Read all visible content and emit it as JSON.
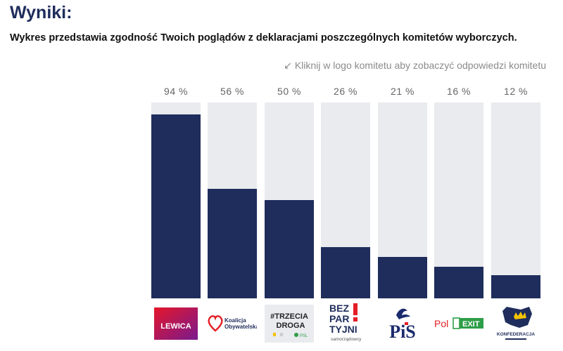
{
  "page": {
    "title": "Wyniki:",
    "subtitle": "Wykres przedstawia zgodność Twoich poglądów z deklaracjami poszczególnych komitetów wyborczych.",
    "hint": "Kliknij w logo komitetu aby zobaczyć odpowiedzi komitetu",
    "hint_icon": "arrow-down-left-icon"
  },
  "colors": {
    "fill": "#1f2d5c",
    "track": "#e9ebee",
    "lewica": "#c8102e",
    "ko": "#e31e24",
    "bezpartyjni": "#1f2d5c",
    "pis": "#1a2a6c",
    "polexit": "#2e9e48",
    "konfederacja": "#1f2d5c"
  },
  "chart_data": {
    "type": "bar",
    "categories": [
      "Lewica",
      "Koalicja Obywatelska",
      "Trzecia Droga",
      "Bezpartyjni Samorządowcy",
      "PiS",
      "PolEXIT",
      "Konfederacja"
    ],
    "values": [
      94,
      56,
      50,
      26,
      21,
      16,
      12
    ],
    "value_labels": [
      "94 %",
      "56 %",
      "50 %",
      "26 %",
      "21 %",
      "16 %",
      "12 %"
    ],
    "ylim": [
      0,
      100
    ],
    "grid": false
  },
  "logos": {
    "lewica": {
      "text": "LEWICA"
    },
    "ko": {
      "line1": "Koalicja",
      "line2": "Obywatelska"
    },
    "td": {
      "line1": "#TRZECIA",
      "line2": "DROGA",
      "psl": "PSL"
    },
    "bp": {
      "line1": "BEZ",
      "line2": "PAR",
      "line3": "TYJNI",
      "line4": "samorządowcy"
    },
    "pis": {
      "text": "PiS"
    },
    "polexit": {
      "part1": "Pol",
      "part2": "EXIT"
    },
    "konf": {
      "text": "KONFEDERACJA"
    }
  }
}
